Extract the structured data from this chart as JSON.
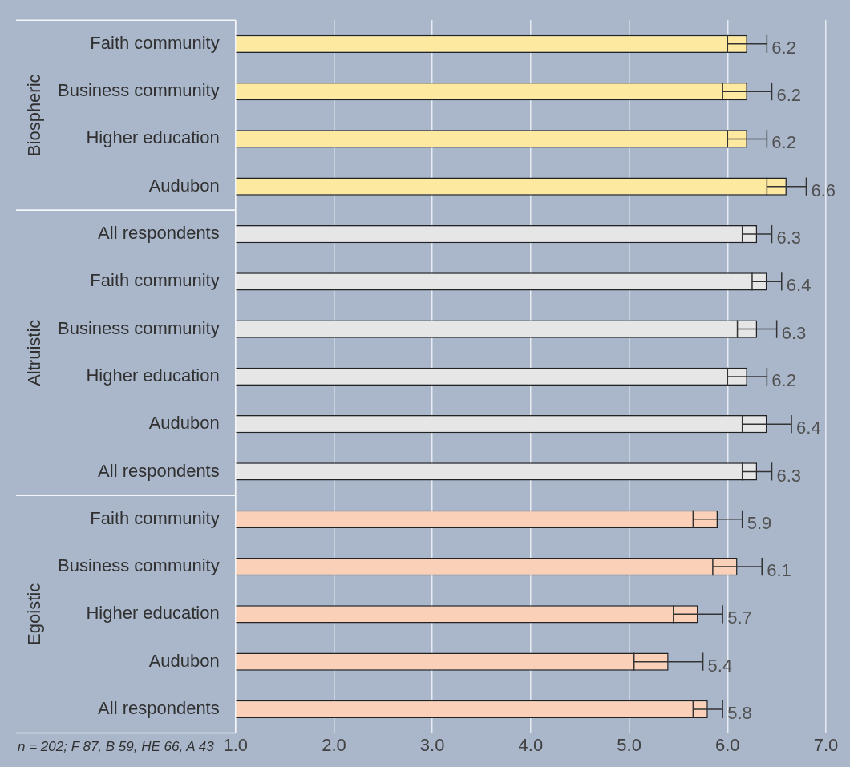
{
  "chart_data": {
    "type": "bar",
    "orientation": "horizontal",
    "categories": [
      "Faith community",
      "Business community",
      "Higher education",
      "Audubon",
      "All respondents",
      "Faith community",
      "Business community",
      "Higher education",
      "Audubon",
      "All respondents",
      "Faith community",
      "Business community",
      "Higher education",
      "Audubon",
      "All respondents"
    ],
    "series": [
      {
        "color": "#fde9a0",
        "values": [
          6.2,
          6.2,
          6.2,
          6.6,
          null,
          null,
          null,
          null,
          null,
          null,
          null,
          null,
          null,
          null,
          null
        ],
        "errors": [
          0.2,
          0.25,
          0.2,
          0.2,
          null,
          null,
          null,
          null,
          null,
          null,
          null,
          null,
          null,
          null,
          null
        ]
      },
      {
        "color": "#e6e6e6",
        "values": [
          null,
          null,
          null,
          null,
          6.3,
          6.4,
          6.3,
          6.2,
          6.4,
          6.3,
          null,
          null,
          null,
          null,
          null
        ],
        "errors": [
          null,
          null,
          null,
          null,
          0.15,
          0.15,
          0.2,
          0.2,
          0.25,
          0.15,
          null,
          null,
          null,
          null,
          null
        ]
      },
      {
        "color": "#fbd0b8",
        "values": [
          null,
          null,
          null,
          null,
          null,
          null,
          null,
          null,
          null,
          null,
          5.9,
          6.1,
          5.7,
          5.4,
          5.8
        ],
        "errors": [
          null,
          null,
          null,
          null,
          null,
          null,
          null,
          null,
          null,
          null,
          0.25,
          0.25,
          0.25,
          0.35,
          0.15
        ]
      }
    ],
    "xlim": [
      1,
      7
    ],
    "xticks": [
      {
        "value": 1,
        "label": "1.0"
      },
      {
        "value": 2,
        "label": "2.0"
      },
      {
        "value": 3,
        "label": "3.0"
      },
      {
        "value": 4,
        "label": "4.0"
      },
      {
        "value": 5,
        "label": "5.0"
      },
      {
        "value": 6,
        "label": "6.0"
      },
      {
        "value": 7,
        "label": "7.0"
      }
    ],
    "grid": "x",
    "legend": false,
    "data_labels": true,
    "annotations": [
      "Biospheric",
      "Altruistic",
      "Egoistic",
      "n = 202; F 87, B 59, HE 66, A 43"
    ]
  }
}
